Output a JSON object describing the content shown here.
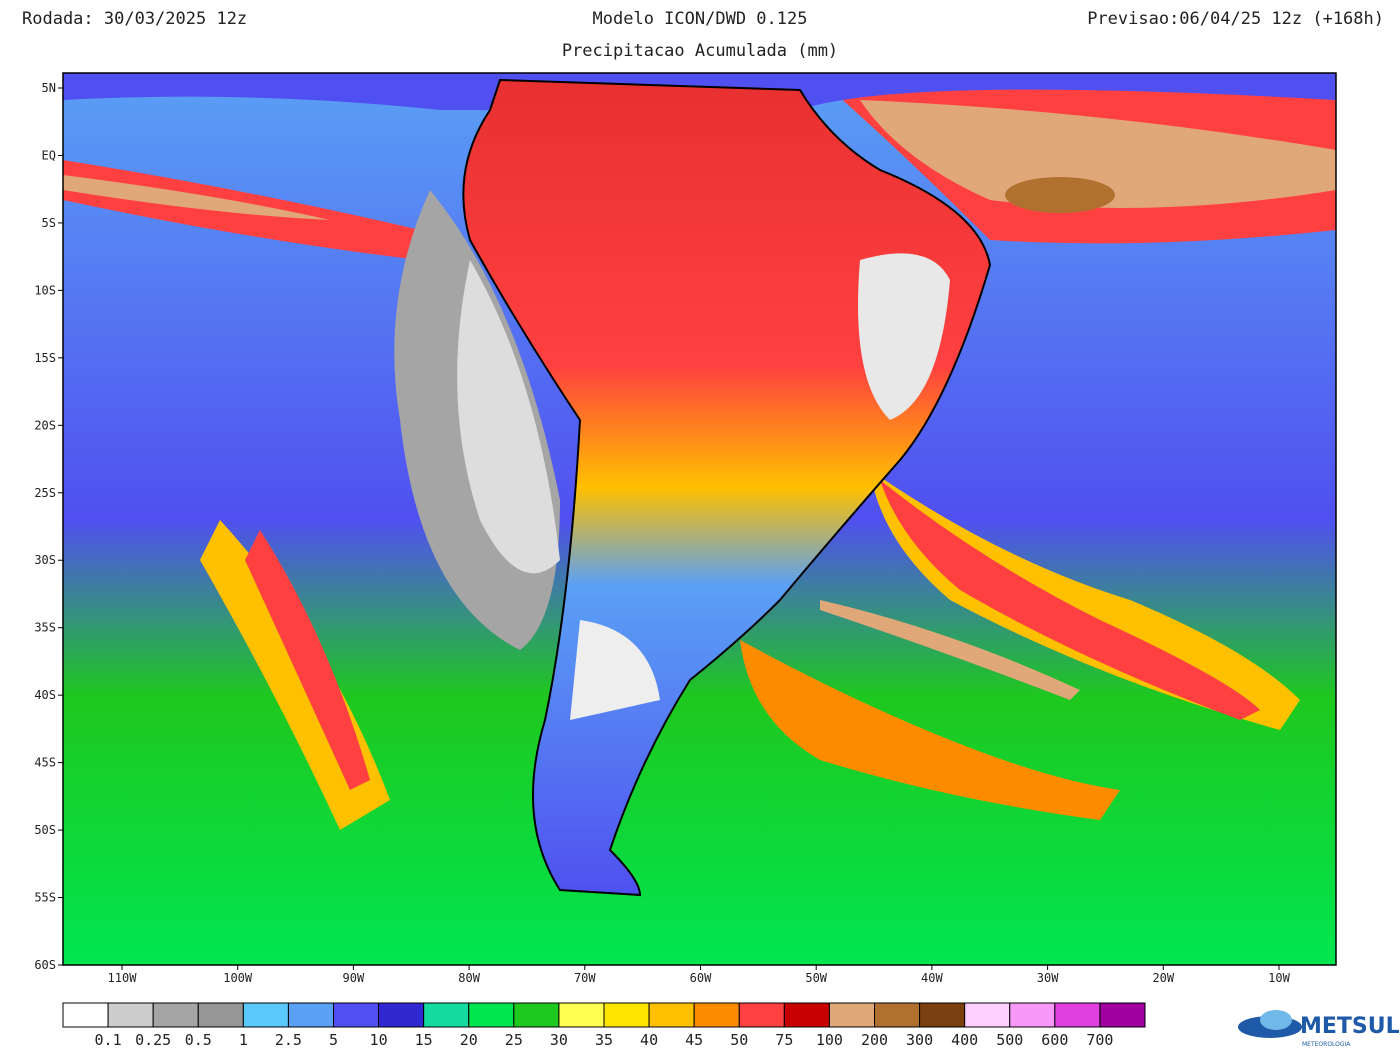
{
  "header": {
    "run": "Rodada: 30/03/2025 12z",
    "model": "Modelo ICON/DWD 0.125",
    "subtitle": "Precipitacao Acumulada (mm)",
    "forecast": "Previsao:06/04/25 12z (+168h)"
  },
  "map": {
    "lat_labels": [
      "5N",
      "EQ",
      "5S",
      "10S",
      "15S",
      "20S",
      "25S",
      "30S",
      "35S",
      "40S",
      "45S",
      "50S",
      "55S",
      "60S"
    ],
    "lon_labels": [
      "110W",
      "100W",
      "90W",
      "80W",
      "70W",
      "60W",
      "50W",
      "40W",
      "30W",
      "20W",
      "10W"
    ]
  },
  "colorbar": {
    "labels": [
      "0.1",
      "0.25",
      "0.5",
      "1",
      "2.5",
      "5",
      "10",
      "15",
      "20",
      "25",
      "30",
      "35",
      "40",
      "45",
      "50",
      "75",
      "100",
      "200",
      "300",
      "400",
      "500",
      "600",
      "700"
    ],
    "colors": [
      "#ffffff",
      "#cccccc",
      "#a5a5a5",
      "#969696",
      "#5ac8fa",
      "#5aa0f5",
      "#5050f0",
      "#3228d2",
      "#14dca0",
      "#00e650",
      "#1ec81e",
      "#ffff50",
      "#ffe600",
      "#ffc000",
      "#ff8c00",
      "#ff4040",
      "#c80000",
      "#e0a878",
      "#b07030",
      "#7a4010",
      "#ffd0ff",
      "#f898f8",
      "#e040e0",
      "#a000a0"
    ]
  },
  "logo": {
    "name": "METSUL",
    "tagline": "METEOROLOGIA"
  }
}
